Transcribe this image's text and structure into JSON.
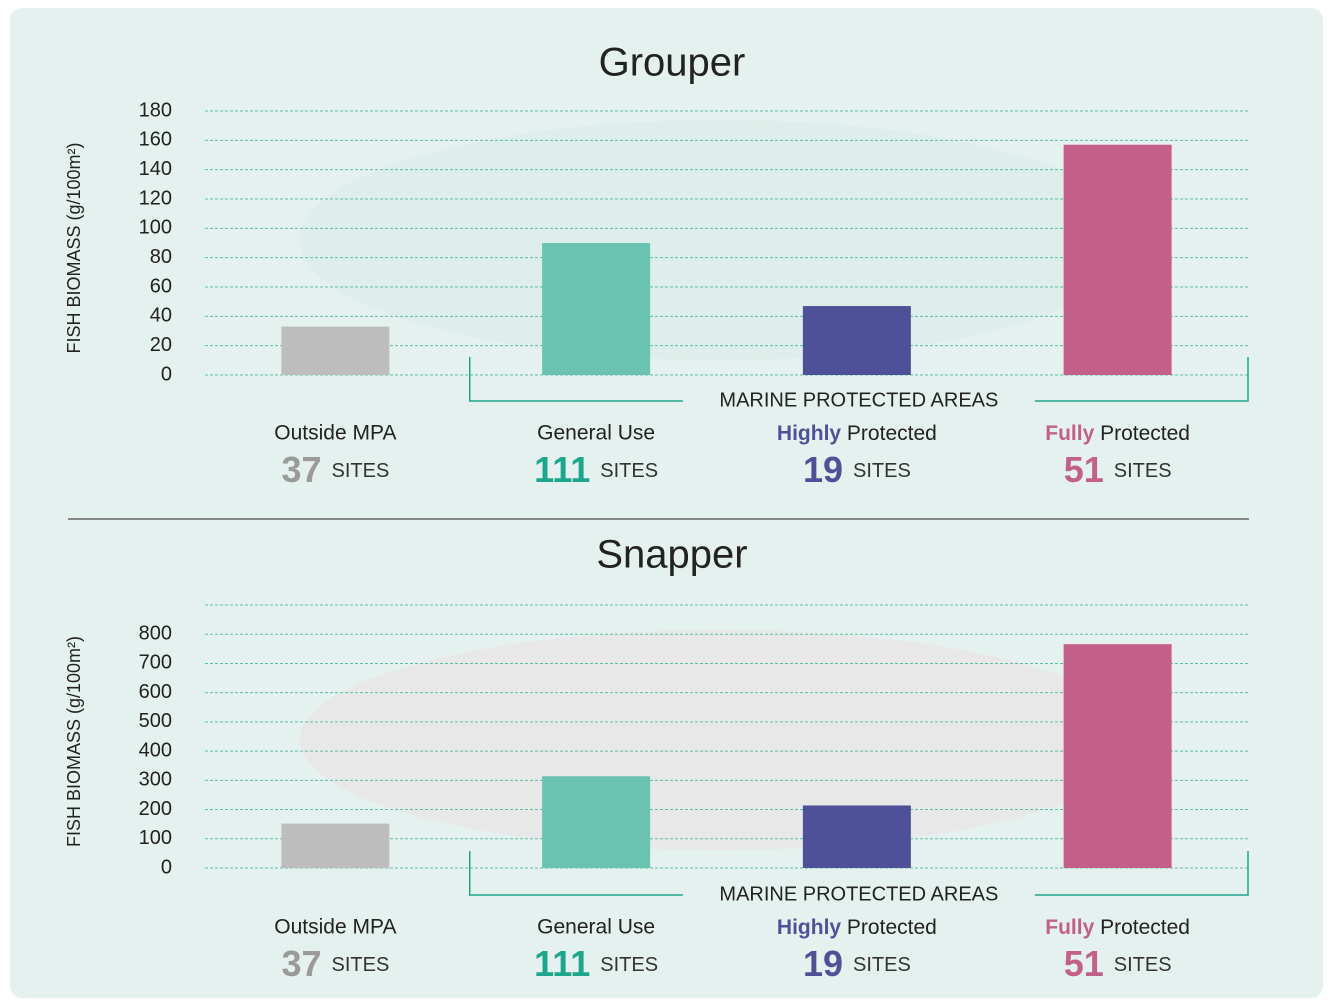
{
  "chart_data": [
    {
      "type": "bar",
      "title": "Grouper",
      "y_label": "FISH BIOMASS (g/100m²)",
      "categories": [
        "Outside MPA",
        "General Use",
        "Highly Protected",
        "Fully Protected"
      ],
      "emphasize_first_word": [
        false,
        false,
        true,
        true
      ],
      "values": [
        33,
        90,
        47,
        157
      ],
      "colors": [
        "#bdbdbd",
        "#6ac2b0",
        "#4e5198",
        "#c2608a"
      ],
      "label_colors": [
        "#9a9a9a",
        "#1ea68c",
        "#4e5198",
        "#c2608a"
      ],
      "sites": [
        37,
        111,
        19,
        51
      ],
      "sites_unit": "SITES",
      "annotation": "MARINE PROTECTED AREAS",
      "ylim": [
        0,
        180
      ],
      "yticks": [
        0,
        20,
        40,
        60,
        80,
        100,
        120,
        140,
        160,
        180
      ],
      "grid": true
    },
    {
      "type": "bar",
      "title": "Snapper",
      "y_label": "FISH BIOMASS (g/100m²)",
      "categories": [
        "Outside MPA",
        "General Use",
        "Highly Protected",
        "Fully Protected"
      ],
      "emphasize_first_word": [
        false,
        false,
        true,
        true
      ],
      "values": [
        152,
        314,
        214,
        766
      ],
      "colors": [
        "#bdbdbd",
        "#6ac2b0",
        "#4e5198",
        "#c2608a"
      ],
      "label_colors": [
        "#9a9a9a",
        "#1ea68c",
        "#4e5198",
        "#c2608a"
      ],
      "sites": [
        37,
        111,
        19,
        51
      ],
      "sites_unit": "SITES",
      "annotation": "MARINE PROTECTED AREAS",
      "ylim": [
        0,
        900
      ],
      "yticks": [
        0,
        100,
        200,
        300,
        400,
        500,
        600,
        700,
        800
      ],
      "grid": true
    }
  ]
}
